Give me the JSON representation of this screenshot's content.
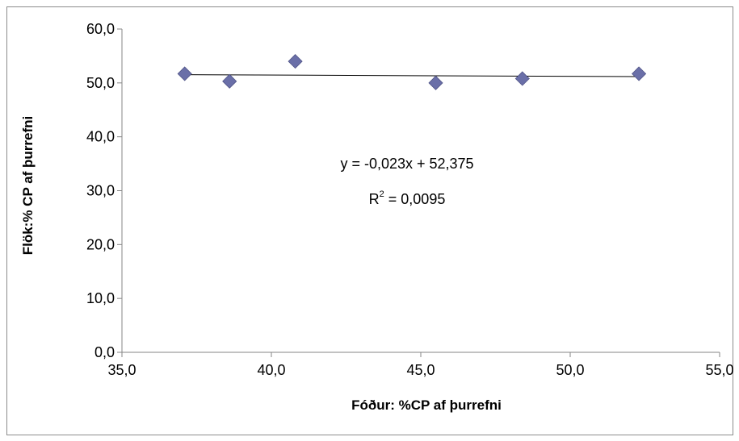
{
  "chart_data": {
    "type": "scatter",
    "title": "",
    "xlabel": "Fóður: %CP af þurrefni",
    "ylabel": "Flök:% CP af þurrefni",
    "xlim": [
      35,
      55
    ],
    "ylim": [
      0,
      60
    ],
    "x_ticks": [
      "35,0",
      "40,0",
      "45,0",
      "50,0",
      "55,0"
    ],
    "y_ticks": [
      "0,0",
      "10,0",
      "20,0",
      "30,0",
      "40,0",
      "50,0",
      "60,0"
    ],
    "grid": false,
    "legend": "none",
    "series": [
      {
        "x": [
          37.1,
          38.6,
          40.8,
          45.5,
          48.4,
          52.3
        ],
        "y": [
          51.7,
          50.3,
          54.0,
          50.0,
          50.8,
          51.7
        ],
        "marker": "diamond",
        "color": "#6a6fa8"
      }
    ],
    "trendline": {
      "type": "linear",
      "slope": -0.023,
      "intercept": 52.375,
      "x_range": [
        37.1,
        52.3
      ],
      "equation": "y = -0,023x + 52,375",
      "r2_prefix": "R",
      "r2_sup": "2",
      "r2_value": " = 0,0095"
    }
  }
}
